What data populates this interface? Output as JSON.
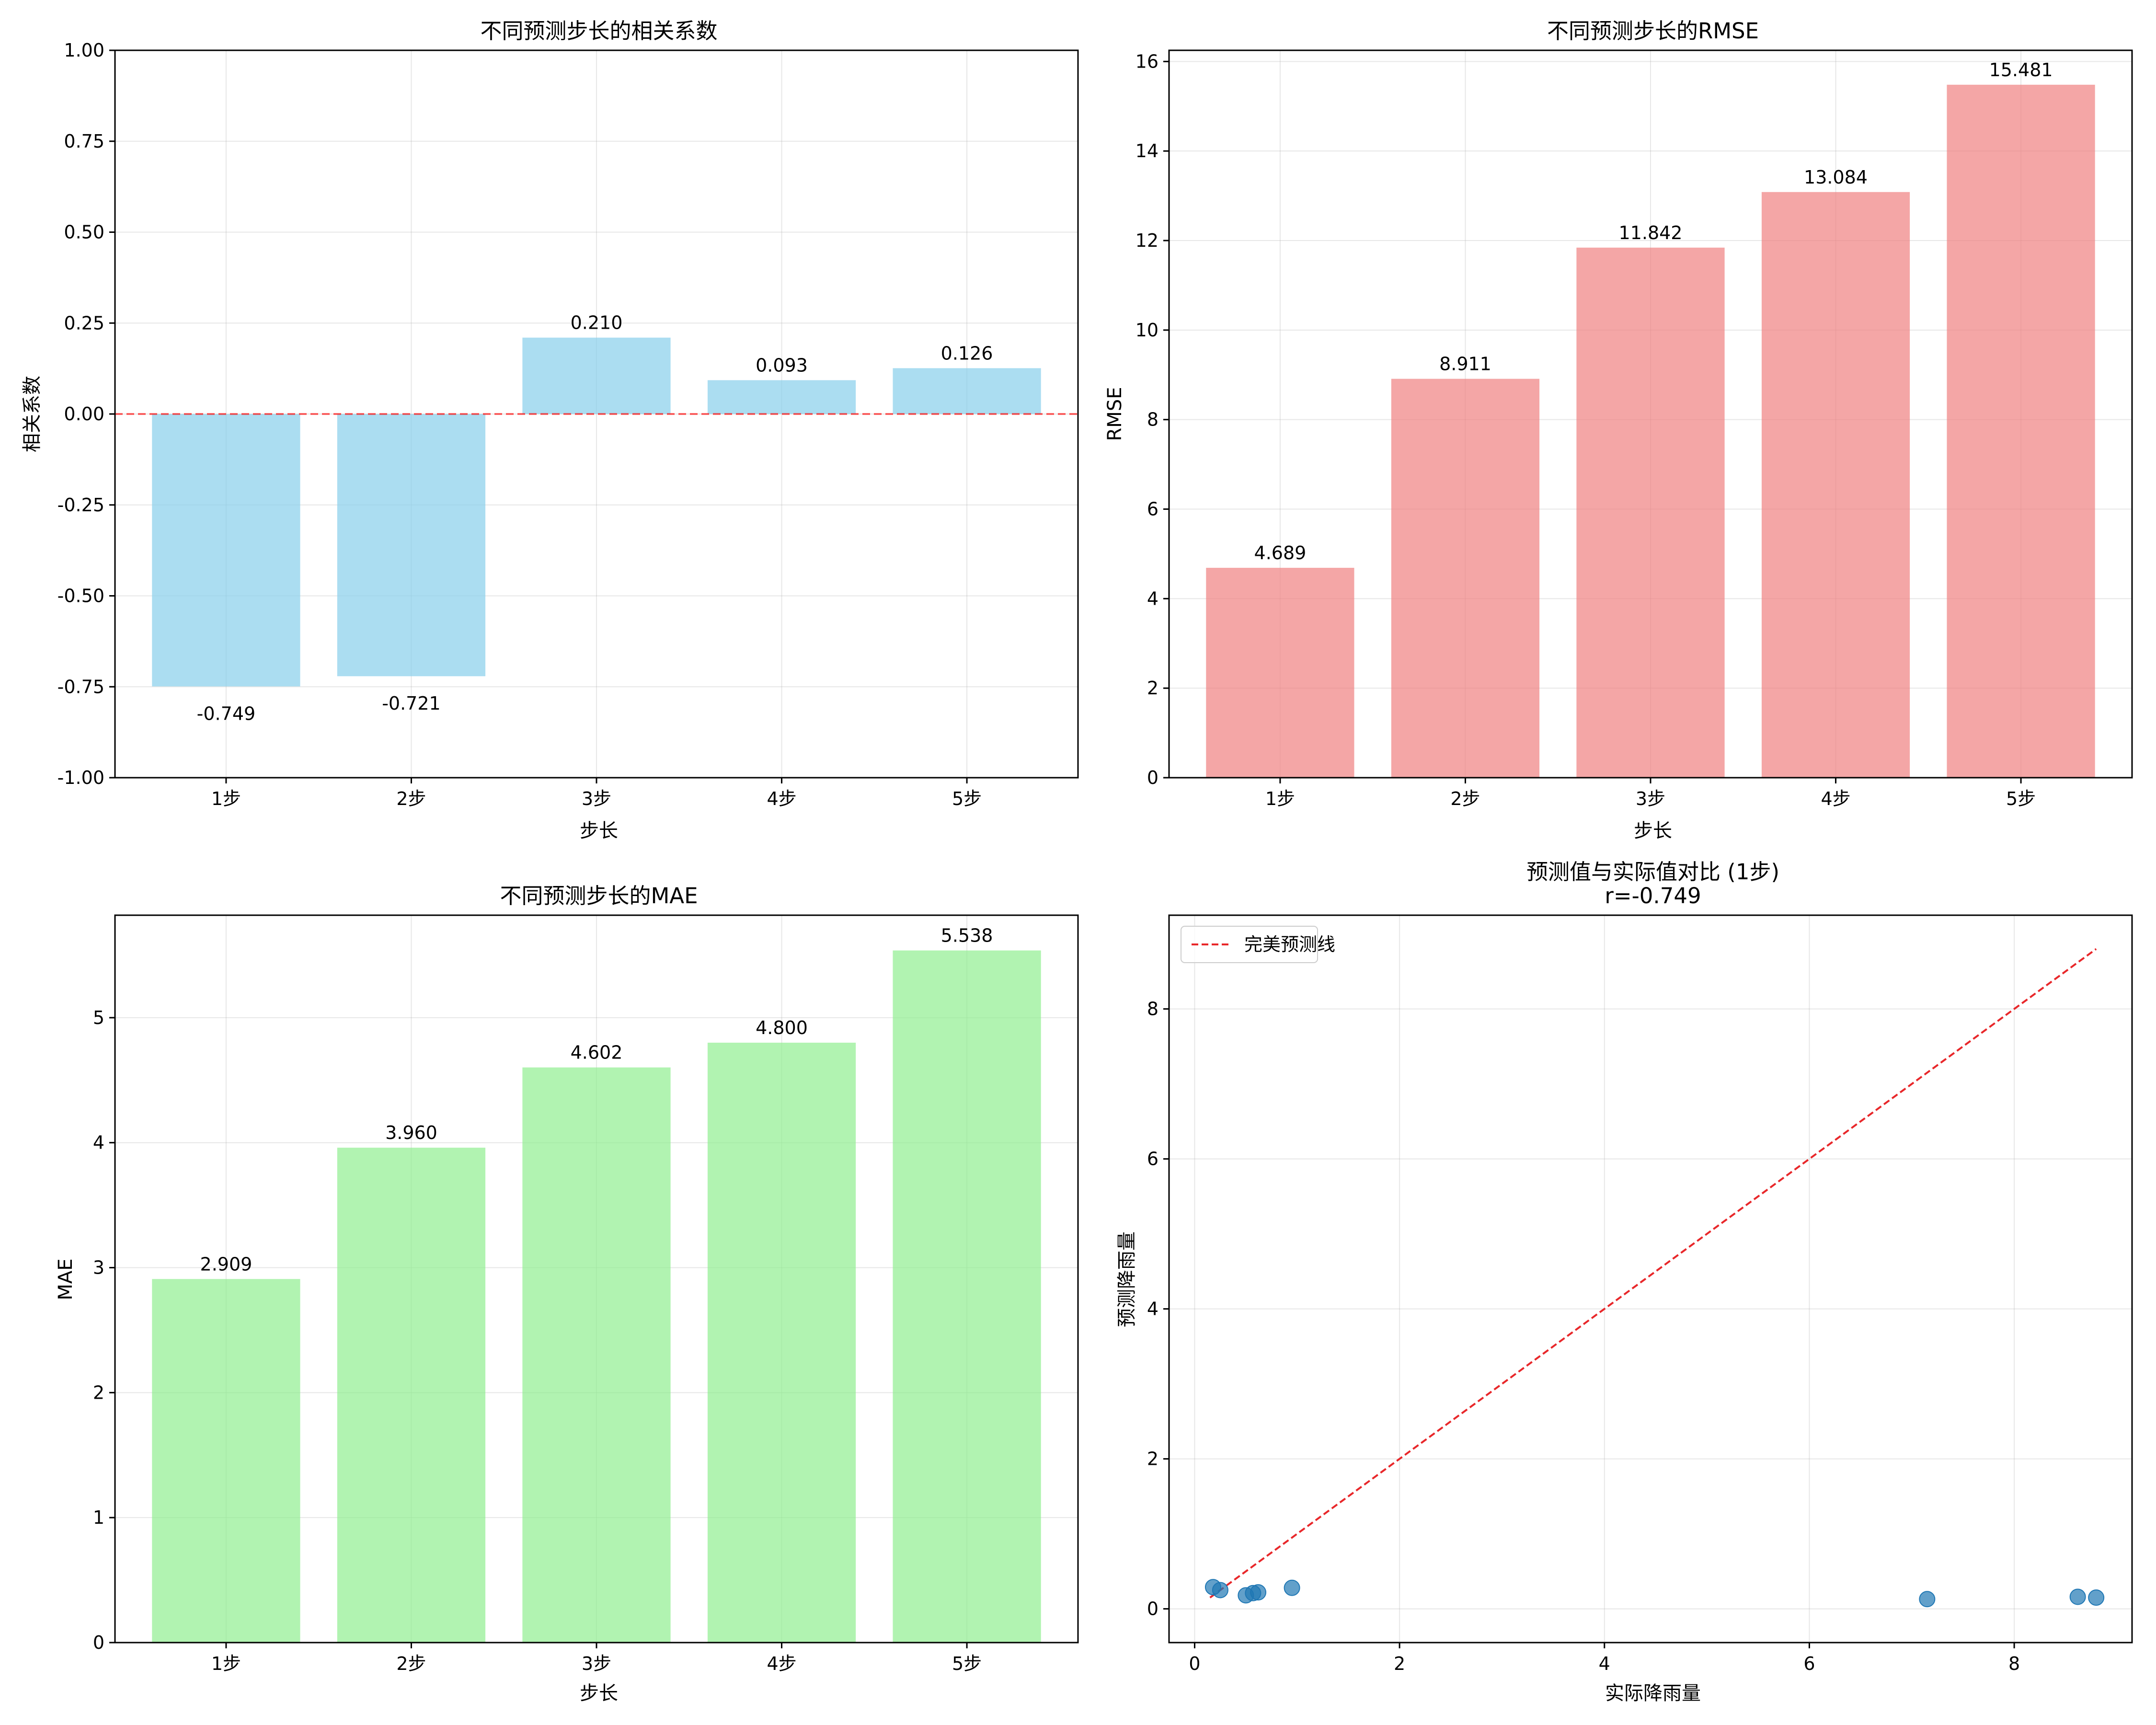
{
  "chart_data": [
    {
      "type": "bar",
      "title": "不同预测步长的相关系数",
      "xlabel": "步长",
      "ylabel": "相关系数",
      "categories": [
        "1步",
        "2步",
        "3步",
        "4步",
        "5步"
      ],
      "values": [
        -0.749,
        -0.721,
        0.21,
        0.093,
        0.126
      ],
      "value_labels": [
        "-0.749",
        "-0.721",
        "0.210",
        "0.093",
        "0.126"
      ],
      "ylim": [
        -1.0,
        1.0
      ],
      "yticks": [
        -1.0,
        -0.75,
        -0.5,
        -0.25,
        0.0,
        0.25,
        0.5,
        0.75,
        1.0
      ],
      "ytick_labels": [
        "-1.00",
        "-0.75",
        "-0.50",
        "-0.25",
        "0.00",
        "0.25",
        "0.50",
        "0.75",
        "1.00"
      ],
      "reference_line": 0,
      "grid": true,
      "color": "#87CEEB"
    },
    {
      "type": "bar",
      "title": "不同预测步长的RMSE",
      "xlabel": "步长",
      "ylabel": "RMSE",
      "categories": [
        "1步",
        "2步",
        "3步",
        "4步",
        "5步"
      ],
      "values": [
        4.689,
        8.911,
        11.842,
        13.084,
        15.481
      ],
      "value_labels": [
        "4.689",
        "8.911",
        "11.842",
        "13.084",
        "15.481"
      ],
      "ylim": [
        0,
        16.25
      ],
      "yticks": [
        0,
        2,
        4,
        6,
        8,
        10,
        12,
        14,
        16
      ],
      "ytick_labels": [
        "0",
        "2",
        "4",
        "6",
        "8",
        "10",
        "12",
        "14",
        "16"
      ],
      "grid": true,
      "color": "#F08080"
    },
    {
      "type": "bar",
      "title": "不同预测步长的MAE",
      "xlabel": "步长",
      "ylabel": "MAE",
      "categories": [
        "1步",
        "2步",
        "3步",
        "4步",
        "5步"
      ],
      "values": [
        2.909,
        3.96,
        4.602,
        4.8,
        5.538
      ],
      "value_labels": [
        "2.909",
        "3.960",
        "4.602",
        "4.800",
        "5.538"
      ],
      "ylim": [
        0,
        5.82
      ],
      "yticks": [
        0,
        1,
        2,
        3,
        4,
        5
      ],
      "ytick_labels": [
        "0",
        "1",
        "2",
        "3",
        "4",
        "5"
      ],
      "grid": true,
      "color": "#90EE90"
    },
    {
      "type": "scatter",
      "title": "预测值与实际值对比 (1步)",
      "subtitle": "r=-0.749",
      "xlabel": "实际降雨量",
      "ylabel": "预测降雨量",
      "xlim": [
        -0.25,
        9.15
      ],
      "ylim": [
        -0.45,
        9.25
      ],
      "xticks": [
        0,
        2,
        4,
        6,
        8
      ],
      "xtick_labels": [
        "0",
        "2",
        "4",
        "6",
        "8"
      ],
      "yticks": [
        0,
        2,
        4,
        6,
        8
      ],
      "ytick_labels": [
        "0",
        "2",
        "4",
        "6",
        "8"
      ],
      "points": [
        {
          "x": 0.18,
          "y": 0.29
        },
        {
          "x": 0.25,
          "y": 0.25
        },
        {
          "x": 0.5,
          "y": 0.18
        },
        {
          "x": 0.57,
          "y": 0.21
        },
        {
          "x": 0.62,
          "y": 0.22
        },
        {
          "x": 0.95,
          "y": 0.28
        },
        {
          "x": 7.15,
          "y": 0.13
        },
        {
          "x": 8.62,
          "y": 0.16
        },
        {
          "x": 8.8,
          "y": 0.15
        }
      ],
      "reference_line": {
        "name": "完美预测线",
        "from": [
          0.15,
          0.15
        ],
        "to": [
          8.8,
          8.8
        ]
      },
      "legend": {
        "position": "top-left",
        "entries": [
          "完美预测线"
        ]
      },
      "grid": true,
      "point_color": "#1f77b4",
      "line_color": "#e8272a"
    }
  ]
}
